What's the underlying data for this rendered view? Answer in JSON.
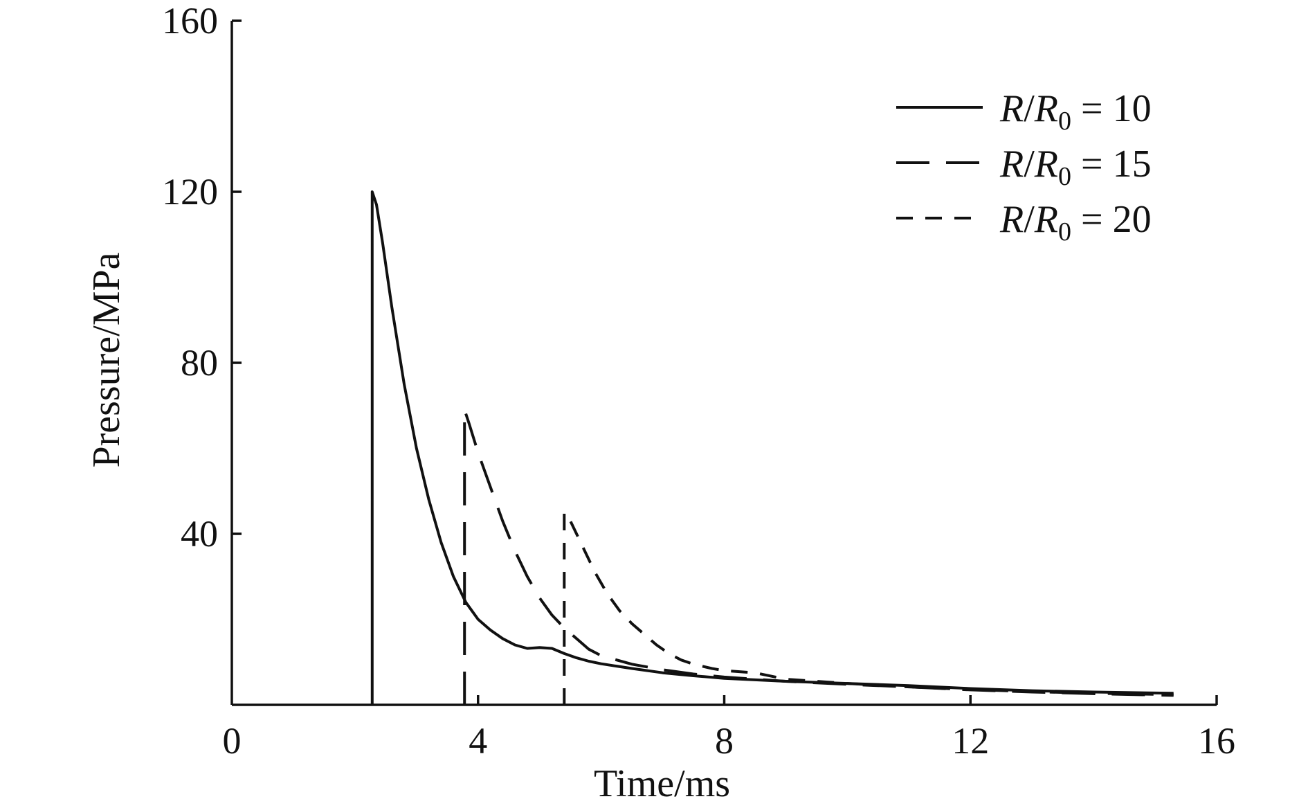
{
  "chart_data": {
    "type": "line",
    "title": "",
    "xlabel": "Time/ms",
    "ylabel": "Pressure/MPa",
    "xlim": [
      0,
      16
    ],
    "ylim": [
      0,
      160
    ],
    "xticks": [
      0,
      4,
      8,
      12,
      16
    ],
    "yticks": [
      40,
      80,
      120,
      160
    ],
    "xtick_labels": [
      "0",
      "4",
      "8",
      "12",
      "16"
    ],
    "ytick_labels": [
      "40",
      "80",
      "120",
      "160"
    ],
    "grid": false,
    "legend_position": "top-right",
    "series": [
      {
        "legend": {
          "var": "R",
          "sub_base": "R",
          "sub": "0",
          "value": "10"
        },
        "dash": "solid",
        "points": [
          [
            2.28,
            0
          ],
          [
            2.28,
            120
          ],
          [
            2.35,
            117
          ],
          [
            2.45,
            108
          ],
          [
            2.6,
            93
          ],
          [
            2.8,
            75
          ],
          [
            3.0,
            60
          ],
          [
            3.2,
            48
          ],
          [
            3.4,
            38
          ],
          [
            3.6,
            30
          ],
          [
            3.8,
            24
          ],
          [
            4.0,
            20
          ],
          [
            4.2,
            17.5
          ],
          [
            4.4,
            15.5
          ],
          [
            4.6,
            14
          ],
          [
            4.8,
            13.2
          ],
          [
            5.0,
            13.4
          ],
          [
            5.2,
            13.2
          ],
          [
            5.4,
            12
          ],
          [
            5.6,
            11
          ],
          [
            5.8,
            10.2
          ],
          [
            6.0,
            9.6
          ],
          [
            6.5,
            8.5
          ],
          [
            7.0,
            7.5
          ],
          [
            7.5,
            6.8
          ],
          [
            8.0,
            6.2
          ],
          [
            9.0,
            5.5
          ],
          [
            10.0,
            5.0
          ],
          [
            11.0,
            4.5
          ],
          [
            12.0,
            3.8
          ],
          [
            13.0,
            3.3
          ],
          [
            14.0,
            3.0
          ],
          [
            15.3,
            2.7
          ]
        ]
      },
      {
        "legend": {
          "var": "R",
          "sub_base": "R",
          "sub": "0",
          "value": "15"
        },
        "dash": "long-dash",
        "points": [
          [
            3.78,
            0
          ],
          [
            3.78,
            69
          ],
          [
            3.85,
            66
          ],
          [
            4.0,
            59
          ],
          [
            4.2,
            51
          ],
          [
            4.4,
            43
          ],
          [
            4.6,
            36
          ],
          [
            4.8,
            30
          ],
          [
            5.0,
            25
          ],
          [
            5.2,
            21
          ],
          [
            5.4,
            18
          ],
          [
            5.6,
            15.5
          ],
          [
            5.8,
            13
          ],
          [
            6.0,
            11.5
          ],
          [
            6.5,
            9.5
          ],
          [
            7.0,
            8.2
          ],
          [
            7.5,
            7.2
          ],
          [
            8.0,
            6.5
          ],
          [
            9.0,
            5.5
          ],
          [
            10.0,
            4.8
          ],
          [
            11.0,
            4.2
          ],
          [
            12.0,
            3.5
          ],
          [
            13.0,
            3.0
          ],
          [
            14.0,
            2.6
          ],
          [
            15.3,
            2.2
          ]
        ]
      },
      {
        "legend": {
          "var": "R",
          "sub_base": "R",
          "sub": "0",
          "value": "20"
        },
        "dash": "short-dash",
        "points": [
          [
            5.4,
            0
          ],
          [
            5.4,
            45
          ],
          [
            5.5,
            43
          ],
          [
            5.7,
            37
          ],
          [
            5.9,
            31
          ],
          [
            6.1,
            26
          ],
          [
            6.3,
            22
          ],
          [
            6.5,
            19
          ],
          [
            6.7,
            16.5
          ],
          [
            6.9,
            14
          ],
          [
            7.1,
            12
          ],
          [
            7.3,
            10.5
          ],
          [
            7.5,
            9.5
          ],
          [
            7.8,
            8.5
          ],
          [
            8.0,
            8.0
          ],
          [
            8.5,
            7.5
          ],
          [
            9.0,
            6.0
          ],
          [
            10.0,
            5.0
          ],
          [
            11.0,
            4.2
          ],
          [
            12.0,
            3.6
          ],
          [
            13.0,
            3.1
          ],
          [
            14.0,
            2.7
          ],
          [
            15.3,
            2.4
          ]
        ]
      }
    ]
  }
}
